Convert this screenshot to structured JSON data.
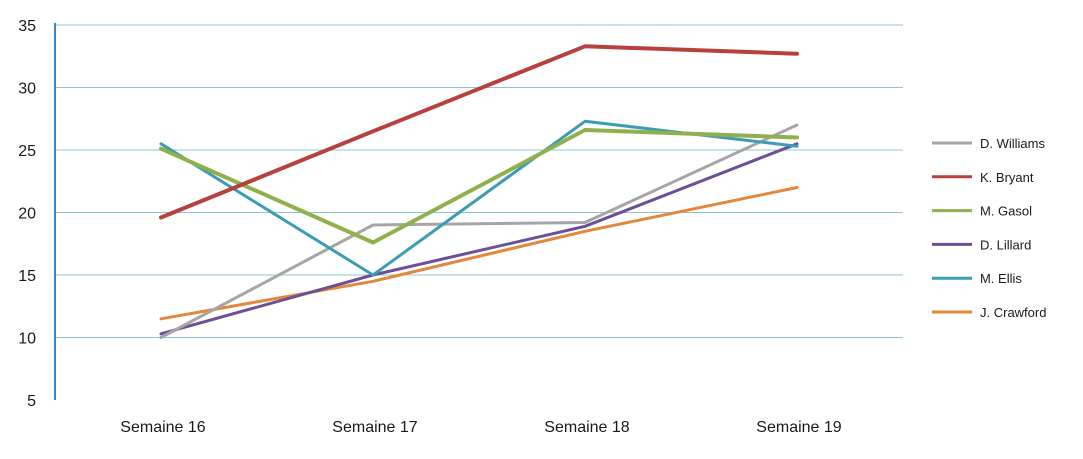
{
  "chart_data": {
    "type": "line",
    "categories": [
      "Semaine 16",
      "Semaine 17",
      "Semaine 18",
      "Semaine 19"
    ],
    "ylim": [
      5,
      35
    ],
    "yticks": [
      5,
      10,
      15,
      20,
      25,
      30,
      35
    ],
    "grid": true,
    "legend_position": "right",
    "series": [
      {
        "name": "D. Williams",
        "color": "#a6a6a6",
        "values": [
          10,
          19,
          19.2,
          27
        ]
      },
      {
        "name": "K. Bryant",
        "color": "#b7413e",
        "values": [
          19.6,
          26.5,
          33.3,
          32.7
        ]
      },
      {
        "name": "M. Gasol",
        "color": "#8fb04c",
        "values": [
          25.1,
          17.6,
          26.6,
          26
        ]
      },
      {
        "name": "D. Lillard",
        "color": "#6c5095",
        "values": [
          10.3,
          15,
          18.9,
          25.5
        ]
      },
      {
        "name": "M. Ellis",
        "color": "#3c9cb4",
        "values": [
          25.5,
          15,
          27.3,
          25.3
        ]
      },
      {
        "name": "J. Crawford",
        "color": "#e2873b",
        "values": [
          11.5,
          14.5,
          18.5,
          22
        ]
      }
    ]
  }
}
